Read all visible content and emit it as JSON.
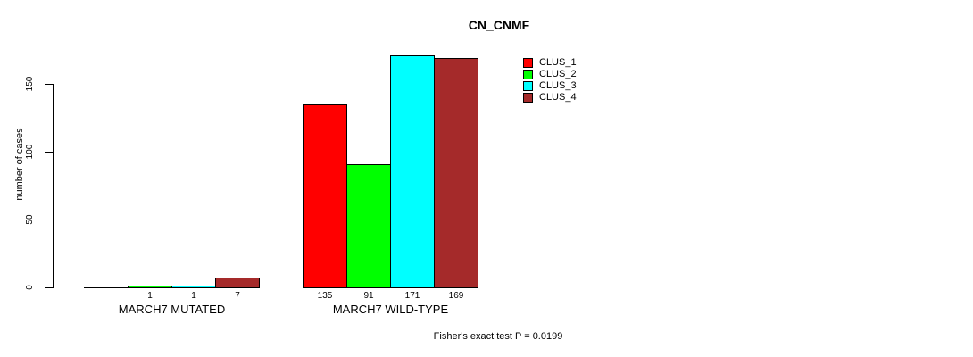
{
  "chart_data": {
    "type": "bar",
    "title": "CN_CNMF",
    "ylabel": "number of cases",
    "xlabel": "",
    "footnote": "Fisher's exact test P = 0.0199",
    "categories": [
      "MARCH7 MUTATED",
      "MARCH7 WILD-TYPE"
    ],
    "series": [
      {
        "name": "CLUS_1",
        "color": "#FF0000",
        "values": [
          0,
          135
        ]
      },
      {
        "name": "CLUS_2",
        "color": "#00FF00",
        "values": [
          1,
          91
        ]
      },
      {
        "name": "CLUS_3",
        "color": "#00FFFF",
        "values": [
          1,
          171
        ]
      },
      {
        "name": "CLUS_4",
        "color": "#A52A2A",
        "values": [
          7,
          169
        ]
      }
    ],
    "bar_value_labels": [
      [
        "",
        "135"
      ],
      [
        "1",
        "91"
      ],
      [
        "1",
        "171"
      ],
      [
        "7",
        "169"
      ]
    ],
    "y_ticks": [
      0,
      50,
      100,
      150
    ],
    "ylim": [
      0,
      175
    ],
    "grid": false,
    "legend": {
      "position": "top-right"
    },
    "colors": {
      "background": "#FFFFFF",
      "axis": "#000000",
      "text": "#000000"
    }
  }
}
